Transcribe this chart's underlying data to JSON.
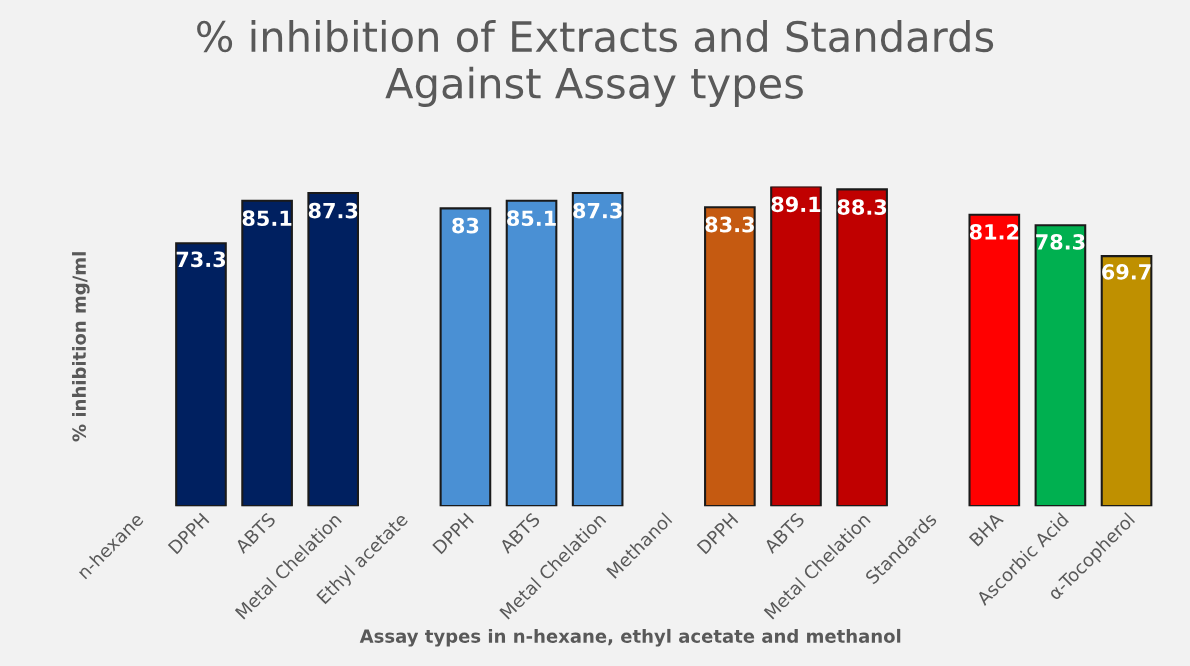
{
  "chart_data": {
    "type": "bar",
    "title": "% inhibition of Extracts and Standards\nAgainst Assay types",
    "xlabel": "Assay types in n-hexane, ethyl acetate and methanol",
    "ylabel": "% inhibition mg/ml",
    "categories": [
      "n-hexane",
      "DPPH",
      "ABTS",
      "Metal Chelation",
      "Ethyl acetate",
      "DPPH",
      "ABTS",
      "Metal Chelation",
      "Methanol",
      "DPPH",
      "ABTS",
      "Metal Chelation",
      "Standards",
      "BHA",
      "Ascorbic Acid",
      "α-Tocopherol"
    ],
    "values": [
      null,
      73.3,
      85.1,
      87.3,
      null,
      83,
      85.1,
      87.3,
      null,
      83.3,
      89.1,
      88.3,
      null,
      81.2,
      78.3,
      69.7
    ],
    "colors": [
      "#002060",
      "#002060",
      "#002060",
      "#002060",
      "#4a90d4",
      "#4a90d4",
      "#4a90d4",
      "#4a90d4",
      "#c55a11",
      "#c55a11",
      "#c00000",
      "#c00000",
      "#ff0000",
      "#ff0000",
      "#00b050",
      "#bf9000"
    ],
    "data_labels": true,
    "grid": false,
    "legend": false
  }
}
